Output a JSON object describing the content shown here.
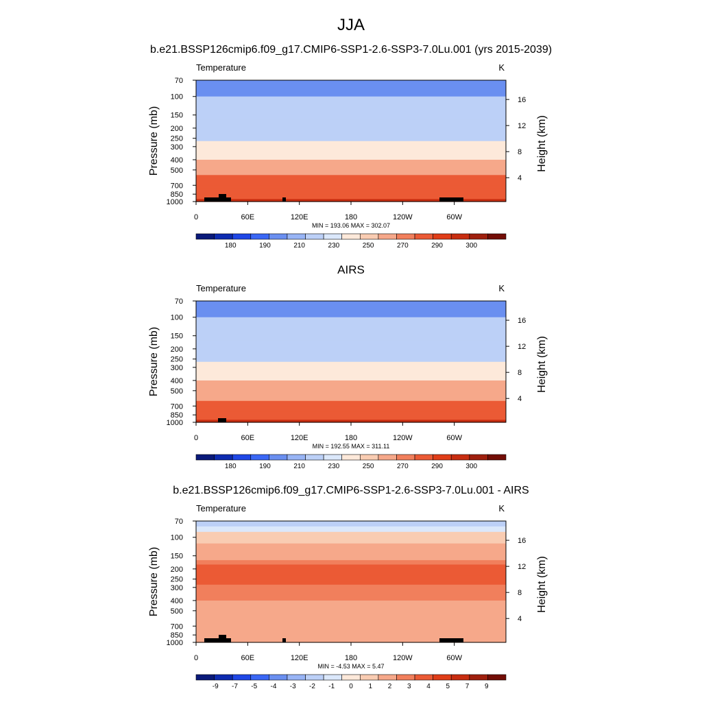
{
  "title": "JJA",
  "chart_data": [
    {
      "type": "heatmap",
      "title": "b.e21.BSSP126cmip6.f09_g17.CMIP6-SSP1-2.6-SSP3-7.0Lu.001 (yrs 2015-2039)",
      "left_label": "Temperature",
      "units": "K",
      "ylabel": "Pressure (mb)",
      "ylabel_right": "Height (km)",
      "x_ticks": [
        "0",
        "60E",
        "120E",
        "180",
        "120W",
        "60W"
      ],
      "y_ticks": [
        "70",
        "100",
        "150",
        "200",
        "250",
        "300",
        "400",
        "500",
        "700",
        "850",
        "1000"
      ],
      "height_ticks": [
        "16",
        "12",
        "8",
        "4"
      ],
      "stats": "MIN = 193.06  MAX = 302.07",
      "min": 193.06,
      "max": 302.07,
      "colorbar_labels": [
        "180",
        "190",
        "210",
        "230",
        "250",
        "270",
        "290",
        "300"
      ],
      "colorbar_colors": [
        "#0a1a7a",
        "#0d2bb0",
        "#1f47e6",
        "#3a67f5",
        "#6a8ff0",
        "#98b4f5",
        "#bcd0f7",
        "#dbe8fb",
        "#fde9da",
        "#f9ccb2",
        "#f6a88a",
        "#f17f5c",
        "#eb5a35",
        "#e03d18",
        "#c82d10",
        "#9f1f0d",
        "#730d06"
      ],
      "layers": [
        {
          "level": 70,
          "value": 208
        },
        {
          "level": 100,
          "value": 210
        },
        {
          "level": 150,
          "value": 214
        },
        {
          "level": 200,
          "value": 220
        },
        {
          "level": 250,
          "value": 228
        },
        {
          "level": 300,
          "value": 238
        },
        {
          "level": 400,
          "value": 252
        },
        {
          "level": 500,
          "value": 262
        },
        {
          "level": 700,
          "value": 278
        },
        {
          "level": 850,
          "value": 285
        },
        {
          "level": 1000,
          "value": 293
        }
      ]
    },
    {
      "type": "heatmap",
      "title": "AIRS",
      "left_label": "Temperature",
      "units": "K",
      "ylabel": "Pressure (mb)",
      "ylabel_right": "Height (km)",
      "x_ticks": [
        "0",
        "60E",
        "120E",
        "180",
        "120W",
        "60W"
      ],
      "y_ticks": [
        "70",
        "100",
        "150",
        "200",
        "250",
        "300",
        "400",
        "500",
        "700",
        "850",
        "1000"
      ],
      "height_ticks": [
        "16",
        "12",
        "8",
        "4"
      ],
      "stats": "MIN = 192.55  MAX = 311.11",
      "min": 192.55,
      "max": 311.11,
      "colorbar_labels": [
        "180",
        "190",
        "210",
        "230",
        "250",
        "270",
        "290",
        "300"
      ],
      "colorbar_colors": [
        "#0a1a7a",
        "#0d2bb0",
        "#1f47e6",
        "#3a67f5",
        "#6a8ff0",
        "#98b4f5",
        "#bcd0f7",
        "#dbe8fb",
        "#fde9da",
        "#f9ccb2",
        "#f6a88a",
        "#f17f5c",
        "#eb5a35",
        "#e03d18",
        "#c82d10",
        "#9f1f0d",
        "#730d06"
      ],
      "layers": [
        {
          "level": 70,
          "value": 208
        },
        {
          "level": 100,
          "value": 210
        },
        {
          "level": 150,
          "value": 214
        },
        {
          "level": 200,
          "value": 220
        },
        {
          "level": 250,
          "value": 228
        },
        {
          "level": 300,
          "value": 238
        },
        {
          "level": 400,
          "value": 252
        },
        {
          "level": 500,
          "value": 262
        },
        {
          "level": 700,
          "value": 276
        },
        {
          "level": 850,
          "value": 284
        },
        {
          "level": 1000,
          "value": 292
        }
      ]
    },
    {
      "type": "heatmap",
      "title": "b.e21.BSSP126cmip6.f09_g17.CMIP6-SSP1-2.6-SSP3-7.0Lu.001 - AIRS",
      "left_label": "Temperature",
      "units": "K",
      "ylabel": "Pressure (mb)",
      "ylabel_right": "Height (km)",
      "x_ticks": [
        "0",
        "60E",
        "120E",
        "180",
        "120W",
        "60W"
      ],
      "y_ticks": [
        "70",
        "100",
        "150",
        "200",
        "250",
        "300",
        "400",
        "500",
        "700",
        "850",
        "1000"
      ],
      "height_ticks": [
        "16",
        "12",
        "8",
        "4"
      ],
      "stats": "MIN =  -4.53  MAX =   5.47",
      "min": -4.53,
      "max": 5.47,
      "colorbar_labels": [
        "-9",
        "-7",
        "-5",
        "-4",
        "-3",
        "-2",
        "-1",
        "0",
        "1",
        "2",
        "3",
        "4",
        "5",
        "7",
        "9"
      ],
      "colorbar_colors": [
        "#0a1a7a",
        "#0d2bb0",
        "#1f47e6",
        "#3a67f5",
        "#6a8ff0",
        "#98b4f5",
        "#bcd0f7",
        "#dbe8fb",
        "#fde9da",
        "#f9ccb2",
        "#f6a88a",
        "#f17f5c",
        "#eb5a35",
        "#e03d18",
        "#c82d10",
        "#9f1f0d",
        "#730d06"
      ],
      "layers": [
        {
          "level": 70,
          "value": -2
        },
        {
          "level": 100,
          "value": 0.5
        },
        {
          "level": 150,
          "value": 1.5
        },
        {
          "level": 200,
          "value": 3.5
        },
        {
          "level": 250,
          "value": 3.5
        },
        {
          "level": 300,
          "value": 2.5
        },
        {
          "level": 400,
          "value": 2
        },
        {
          "level": 500,
          "value": 1.5
        },
        {
          "level": 700,
          "value": 1
        },
        {
          "level": 850,
          "value": 1
        },
        {
          "level": 1000,
          "value": 1.5
        }
      ]
    }
  ]
}
